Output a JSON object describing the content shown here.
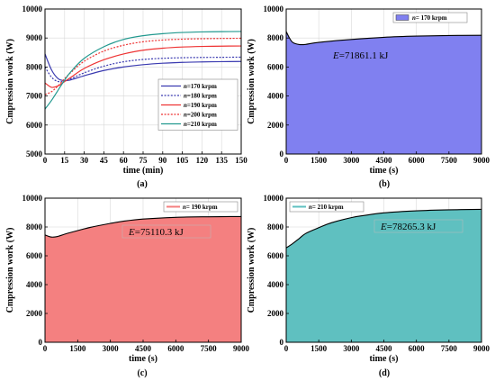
{
  "chart_data": [
    {
      "id": "a",
      "type": "line",
      "panel_label": "(a)",
      "xlabel": "time (min)",
      "ylabel": "Cmpression work (W)",
      "xlim": [
        0,
        150
      ],
      "ylim": [
        5000,
        10000
      ],
      "xticks": [
        0,
        15,
        30,
        45,
        60,
        75,
        90,
        105,
        120,
        135,
        150
      ],
      "yticks": [
        5000,
        6000,
        7000,
        8000,
        9000,
        10000
      ],
      "legend_position": "center-right",
      "series": [
        {
          "name": "n=170 krpm",
          "name_italic": "n",
          "name_rest": "=170 krpm",
          "color": "#3a3ab0",
          "dash": "solid",
          "x": [
            0,
            5,
            10,
            15,
            20,
            30,
            45,
            60,
            75,
            90,
            105,
            120,
            135,
            150
          ],
          "y": [
            8450,
            7900,
            7600,
            7530,
            7560,
            7700,
            7880,
            8000,
            8080,
            8130,
            8160,
            8175,
            8185,
            8190
          ]
        },
        {
          "name": "n=180 krpm",
          "name_italic": "n",
          "name_rest": "=180 krpm",
          "color": "#3a3ab0",
          "dash": "dotted",
          "x": [
            0,
            5,
            10,
            15,
            20,
            30,
            45,
            60,
            75,
            90,
            105,
            120,
            135,
            150
          ],
          "y": [
            8000,
            7650,
            7500,
            7520,
            7600,
            7800,
            8030,
            8180,
            8260,
            8300,
            8320,
            8330,
            8335,
            8340
          ]
        },
        {
          "name": "n=190 krpm",
          "name_italic": "n",
          "name_rest": "=190 krpm",
          "color": "#ee3333",
          "dash": "solid",
          "x": [
            0,
            5,
            10,
            15,
            20,
            30,
            45,
            60,
            75,
            90,
            105,
            120,
            135,
            150
          ],
          "y": [
            7450,
            7300,
            7350,
            7500,
            7650,
            7950,
            8250,
            8450,
            8580,
            8650,
            8690,
            8710,
            8720,
            8725
          ]
        },
        {
          "name": "n=200 krpm",
          "name_italic": "n",
          "name_rest": "=200 krpm",
          "color": "#ee3333",
          "dash": "dotted",
          "x": [
            0,
            5,
            10,
            15,
            20,
            30,
            45,
            60,
            75,
            90,
            105,
            120,
            135,
            150
          ],
          "y": [
            7050,
            7150,
            7350,
            7600,
            7820,
            8200,
            8550,
            8750,
            8870,
            8930,
            8960,
            8975,
            8985,
            8990
          ]
        },
        {
          "name": "n=210 krpm",
          "name_italic": "n",
          "name_rest": "=210 krpm",
          "color": "#22998f",
          "dash": "solid",
          "x": [
            0,
            5,
            10,
            15,
            20,
            30,
            45,
            60,
            75,
            90,
            105,
            120,
            135,
            150
          ],
          "y": [
            6550,
            6850,
            7200,
            7550,
            7850,
            8300,
            8700,
            8950,
            9080,
            9150,
            9190,
            9210,
            9220,
            9225
          ]
        }
      ]
    },
    {
      "id": "b",
      "type": "area",
      "panel_label": "(b)",
      "xlabel": "time (s)",
      "ylabel": "Cmpression work (W)",
      "xlim": [
        0,
        9000
      ],
      "ylim": [
        0,
        10000
      ],
      "xticks": [
        0,
        1500,
        3000,
        4500,
        6000,
        7500,
        9000
      ],
      "yticks": [
        0,
        2000,
        4000,
        6000,
        8000,
        10000
      ],
      "legend_position": "top-center",
      "annotation": {
        "italic": "E",
        "rest": "=71861.1 kJ"
      },
      "fill": "#8080f0",
      "line": "#000000",
      "series": [
        {
          "name": "n= 170 krpm",
          "name_italic": "n",
          "name_rest": "= 170 krpm",
          "x": [
            0,
            150,
            300,
            600,
            900,
            1500,
            3000,
            4500,
            6000,
            7500,
            9000
          ],
          "y": [
            8450,
            8000,
            7700,
            7550,
            7560,
            7700,
            7900,
            8050,
            8130,
            8170,
            8190
          ]
        }
      ]
    },
    {
      "id": "c",
      "type": "area",
      "panel_label": "(c)",
      "xlabel": "time (s)",
      "ylabel": "Cmpression work (W)",
      "xlim": [
        0,
        9000
      ],
      "ylim": [
        0,
        10000
      ],
      "xticks": [
        0,
        1500,
        3000,
        4500,
        6000,
        7500,
        9000
      ],
      "yticks": [
        0,
        2000,
        4000,
        6000,
        8000,
        10000
      ],
      "legend_position": "top-right",
      "annotation": {
        "italic": "E",
        "rest": "=75110.3 kJ"
      },
      "fill": "#f48080",
      "line": "#000000",
      "series": [
        {
          "name": "n= 190 krpm",
          "name_italic": "n",
          "name_rest": "= 190 krpm",
          "x": [
            0,
            300,
            600,
            900,
            1500,
            2100,
            3000,
            3600,
            4500,
            6000,
            7500,
            9000
          ],
          "y": [
            7450,
            7300,
            7350,
            7500,
            7750,
            7980,
            8250,
            8400,
            8550,
            8670,
            8710,
            8725
          ]
        }
      ]
    },
    {
      "id": "d",
      "type": "area",
      "panel_label": "(d)",
      "xlabel": "time (s)",
      "ylabel": "Cmpression work (W)",
      "xlim": [
        0,
        9000
      ],
      "ylim": [
        0,
        10000
      ],
      "xticks": [
        0,
        1500,
        3000,
        4500,
        6000,
        7500,
        9000
      ],
      "yticks": [
        0,
        2000,
        4000,
        6000,
        8000,
        10000
      ],
      "legend_position": "top-left",
      "annotation": {
        "italic": "E",
        "rest": "=78265.3 kJ"
      },
      "fill": "#5fc0c0",
      "line": "#000000",
      "series": [
        {
          "name": "n= 210 krpm",
          "name_italic": "n",
          "name_rest": "= 210 krpm",
          "x": [
            0,
            300,
            600,
            900,
            1500,
            2100,
            3000,
            3600,
            4500,
            6000,
            7500,
            9000
          ],
          "y": [
            6550,
            6850,
            7200,
            7550,
            7950,
            8300,
            8650,
            8800,
            8980,
            9120,
            9190,
            9225
          ]
        }
      ]
    }
  ]
}
